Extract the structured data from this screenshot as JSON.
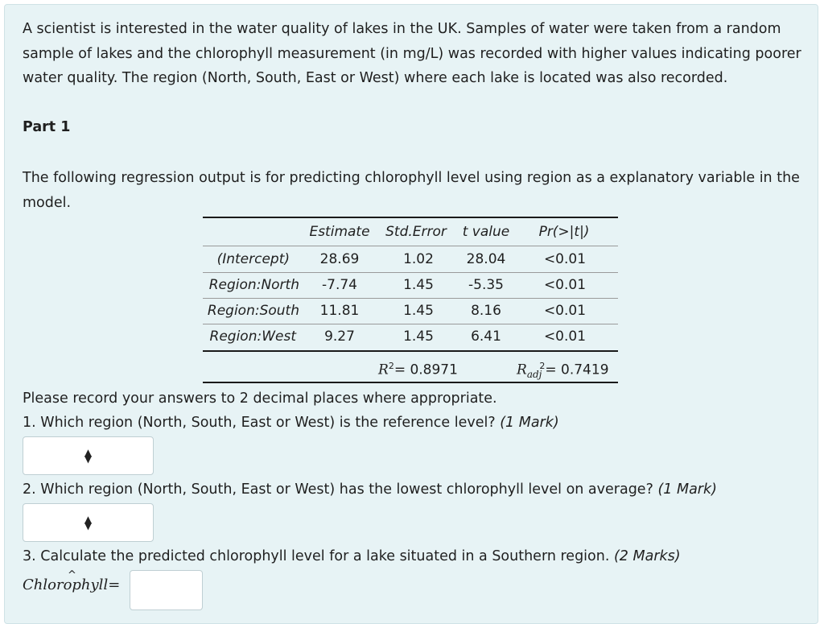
{
  "intro": "A scientist is interested in the water quality of lakes in the UK. Samples of water were taken from a random sample of lakes and the chlorophyll measurement (in mg/L) was recorded with higher values indicating poorer water quality. The region (North, South, East or West) where each lake is located was also recorded.",
  "part_label": "Part 1",
  "lead": "The following regression output is for predicting chlorophyll level using region as a explanatory variable in the model.",
  "table": {
    "headers": [
      "Estimate",
      "Std.Error",
      "t value",
      "Pr(>|t|)"
    ],
    "rows": [
      {
        "term": "(Intercept)",
        "estimate": "28.69",
        "se": "1.02",
        "t": "28.04",
        "p": "<0.01"
      },
      {
        "term": "Region:North",
        "estimate": "-7.74",
        "se": "1.45",
        "t": "-5.35",
        "p": "<0.01"
      },
      {
        "term": "Region:South",
        "estimate": "11.81",
        "se": "1.45",
        "t": "8.16",
        "p": "<0.01"
      },
      {
        "term": "Region:West",
        "estimate": "9.27",
        "se": "1.45",
        "t": "6.41",
        "p": "<0.01"
      }
    ],
    "r2_value": "= 0.8971",
    "radj_value": "= 0.7419"
  },
  "instructions": "Please record your answers to 2 decimal places where appropriate.",
  "questions": [
    {
      "text": "1. Which region (North, South, East or West) is the reference level?",
      "marks": "(1 Mark)",
      "selected": ""
    },
    {
      "text": "2. Which region (North, South, East or West) has the lowest chlorophyll level on average?",
      "marks": "(1 Mark)",
      "selected": ""
    },
    {
      "text": "3. Calculate the predicted chlorophyll level for a lake situated in a Southern region.",
      "marks": "(2 Marks)"
    }
  ],
  "answer": {
    "label": "Chlorophyll=",
    "hat": "^",
    "value": ""
  }
}
